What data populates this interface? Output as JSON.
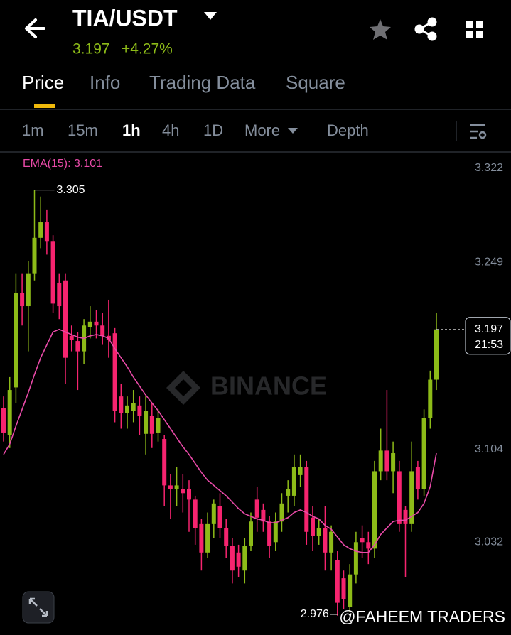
{
  "header": {
    "symbol": "TIA/USDT",
    "price": "3.197",
    "change": "+4.27%"
  },
  "tabs": [
    "Price",
    "Info",
    "Trading Data",
    "Square"
  ],
  "intervals": [
    "1m",
    "15m",
    "1h",
    "4h",
    "1D",
    "More",
    "Depth"
  ],
  "footer": {
    "watermark": "BINANCE",
    "credit": "@FAHEEM TRADERS"
  },
  "chart_data": {
    "type": "candlestick",
    "ema_label": "EMA(15): 3.101",
    "ylim": [
      2.96,
      3.334
    ],
    "yticks": [
      3.322,
      3.249,
      3.104,
      3.032
    ],
    "high_label": 3.305,
    "low_label": 2.976,
    "last_price": 3.197,
    "countdown": "21:53",
    "up_color": "#8dbb18",
    "down_color": "#f6246f",
    "open": [
      3.136,
      3.115,
      3.152,
      3.225,
      3.215,
      3.24,
      3.268,
      3.28,
      3.265,
      3.233,
      3.235,
      3.192,
      3.188,
      3.18,
      3.199,
      3.203,
      3.2,
      3.192,
      3.194,
      3.145,
      3.132,
      3.134,
      3.138,
      3.116,
      3.13,
      3.117,
      3.112,
      3.076,
      3.073,
      3.073,
      3.073,
      3.065,
      3.046,
      3.024,
      3.046,
      3.06,
      3.043,
      3.029,
      3.024,
      3.01,
      3.029,
      3.065,
      3.057,
      3.048,
      3.032,
      3.048,
      3.068,
      3.068,
      3.084,
      3.09,
      3.051,
      3.037,
      3.043,
      3.024,
      3.018,
      3.004,
      2.982,
      3.007,
      3.035,
      3.032,
      3.027,
      3.087,
      3.103,
      3.087,
      3.087,
      3.057,
      3.046,
      3.09,
      3.073,
      3.128,
      3.158
    ],
    "high": [
      3.145,
      3.16,
      3.24,
      3.24,
      3.25,
      3.305,
      3.3,
      3.29,
      3.27,
      3.24,
      3.24,
      3.2,
      3.195,
      3.205,
      3.215,
      3.212,
      3.21,
      3.22,
      3.198,
      3.155,
      3.145,
      3.15,
      3.145,
      3.145,
      3.14,
      3.135,
      3.115,
      3.085,
      3.09,
      3.085,
      3.08,
      3.068,
      3.05,
      3.055,
      3.065,
      3.07,
      3.05,
      3.035,
      3.03,
      3.035,
      3.055,
      3.075,
      3.062,
      3.052,
      3.055,
      3.07,
      3.08,
      3.1,
      3.1,
      3.095,
      3.06,
      3.05,
      3.06,
      3.045,
      3.025,
      3.01,
      3.015,
      3.04,
      3.045,
      3.04,
      3.095,
      3.12,
      3.15,
      3.11,
      3.095,
      3.06,
      3.11,
      3.095,
      3.135,
      3.165,
      3.21
    ],
    "low": [
      3.11,
      3.105,
      3.14,
      3.2,
      3.18,
      3.235,
      3.26,
      3.255,
      3.21,
      3.205,
      3.155,
      3.18,
      3.15,
      3.17,
      3.19,
      3.19,
      3.185,
      3.175,
      3.125,
      3.12,
      3.12,
      3.125,
      3.115,
      3.1,
      3.105,
      3.11,
      3.06,
      3.05,
      3.06,
      3.055,
      3.04,
      3.03,
      3.01,
      3.02,
      3.035,
      3.035,
      3.02,
      3.0,
      3.005,
      3.0,
      3.025,
      3.04,
      3.04,
      3.02,
      3.025,
      3.04,
      3.055,
      3.06,
      3.075,
      3.03,
      3.025,
      3.03,
      3.01,
      3.01,
      2.975,
      2.98,
      2.978,
      3.0,
      3.02,
      3.015,
      3.02,
      3.08,
      3.08,
      3.07,
      3.04,
      3.005,
      3.04,
      3.065,
      3.068,
      3.12,
      3.15
    ],
    "close": [
      3.117,
      3.15,
      3.225,
      3.215,
      3.24,
      3.268,
      3.28,
      3.265,
      3.217,
      3.215,
      3.175,
      3.189,
      3.18,
      3.2,
      3.203,
      3.2,
      3.192,
      3.189,
      3.134,
      3.132,
      3.138,
      3.14,
      3.13,
      3.134,
      3.116,
      3.128,
      3.076,
      3.073,
      3.076,
      3.07,
      3.065,
      3.043,
      3.024,
      3.046,
      3.062,
      3.043,
      3.029,
      3.01,
      3.013,
      3.029,
      3.048,
      3.051,
      3.048,
      3.029,
      3.048,
      3.062,
      3.073,
      3.09,
      3.09,
      3.04,
      3.037,
      3.043,
      3.024,
      3.04,
      2.985,
      2.988,
      3.007,
      3.032,
      3.032,
      3.027,
      3.087,
      3.103,
      3.087,
      3.101,
      3.046,
      3.046,
      3.087,
      3.073,
      3.128,
      3.158,
      3.197
    ],
    "ema": {
      "name": "EMA(15)",
      "color": "#e94aa8",
      "values": [
        3.1,
        3.108,
        3.122,
        3.135,
        3.148,
        3.162,
        3.175,
        3.185,
        3.195,
        3.197,
        3.195,
        3.193,
        3.191,
        3.19,
        3.192,
        3.193,
        3.192,
        3.19,
        3.182,
        3.175,
        3.168,
        3.16,
        3.153,
        3.146,
        3.14,
        3.134,
        3.127,
        3.12,
        3.113,
        3.106,
        3.1,
        3.093,
        3.086,
        3.08,
        3.076,
        3.072,
        3.068,
        3.063,
        3.058,
        3.054,
        3.052,
        3.05,
        3.049,
        3.047,
        3.047,
        3.049,
        3.051,
        3.055,
        3.057,
        3.055,
        3.052,
        3.05,
        3.045,
        3.042,
        3.036,
        3.03,
        3.027,
        3.025,
        3.024,
        3.024,
        3.03,
        3.038,
        3.043,
        3.048,
        3.049,
        3.049,
        3.052,
        3.055,
        3.062,
        3.075,
        3.101
      ]
    }
  }
}
